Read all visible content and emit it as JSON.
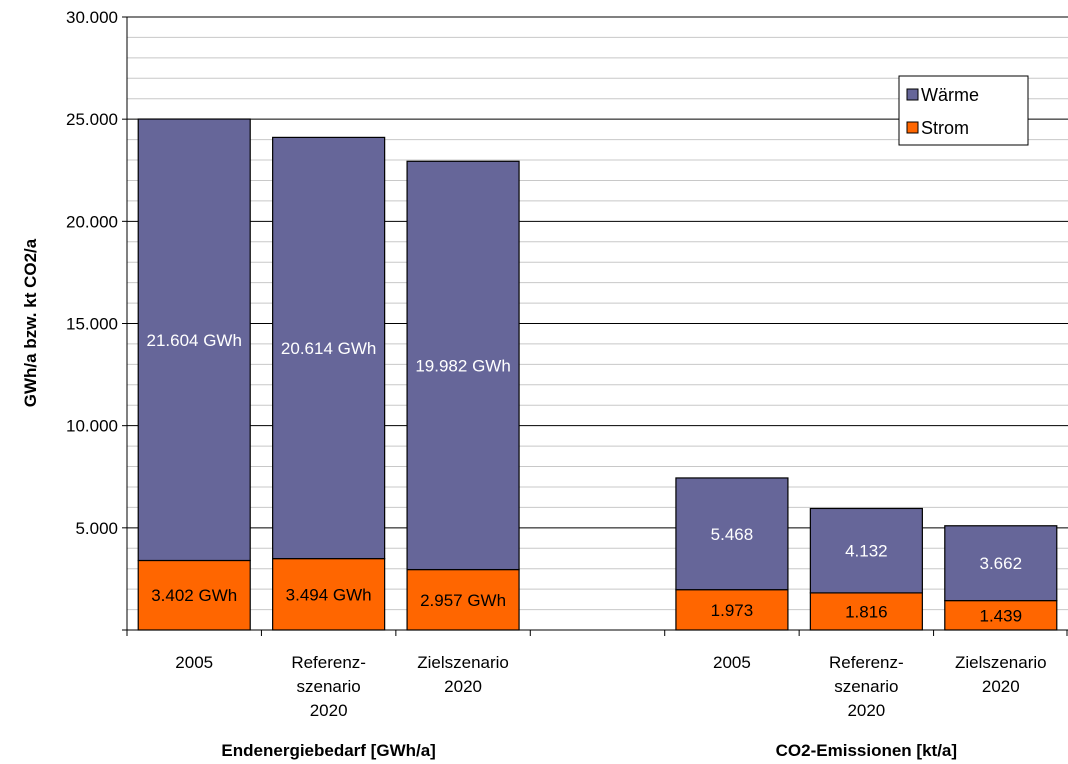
{
  "chart_data": {
    "type": "bar",
    "stacked": true,
    "ylabel": "GWh/a bzw. kt CO2/a",
    "ylim": [
      0,
      30000
    ],
    "y_ticks": [
      "30.000",
      "25.000",
      "20.000",
      "15.000",
      "10.000",
      "5.000"
    ],
    "legend": {
      "position": "top-right",
      "entries": [
        "Wärme",
        "Strom"
      ]
    },
    "groups": [
      {
        "title": "Endenergiebedarf [GWh/a]",
        "categories": [
          [
            "2005"
          ],
          [
            "Referenz-",
            "szenario",
            "2020"
          ],
          [
            "Zielszenario",
            "2020"
          ]
        ],
        "series": [
          {
            "name": "Strom",
            "values": [
              3402,
              3494,
              2957
            ],
            "labels": [
              "3.402 GWh",
              "3.494 GWh",
              "2.957 GWh"
            ]
          },
          {
            "name": "Wärme",
            "values": [
              21604,
              20614,
              19982
            ],
            "labels": [
              "21.604 GWh",
              "20.614 GWh",
              "19.982 GWh"
            ]
          }
        ]
      },
      {
        "title": "CO2-Emissionen [kt/a]",
        "categories": [
          [
            "2005"
          ],
          [
            "Referenz-",
            "szenario",
            "2020"
          ],
          [
            "Zielszenario",
            "2020"
          ]
        ],
        "series": [
          {
            "name": "Strom",
            "values": [
              1973,
              1816,
              1439
            ],
            "labels": [
              "1.973",
              "1.816",
              "1.439"
            ]
          },
          {
            "name": "Wärme",
            "values": [
              5468,
              4132,
              3662
            ],
            "labels": [
              "5.468",
              "4.132",
              "3.662"
            ]
          }
        ]
      }
    ],
    "colors": {
      "Wärme": "#666699",
      "Strom": "#ff6600"
    },
    "grid": true
  }
}
